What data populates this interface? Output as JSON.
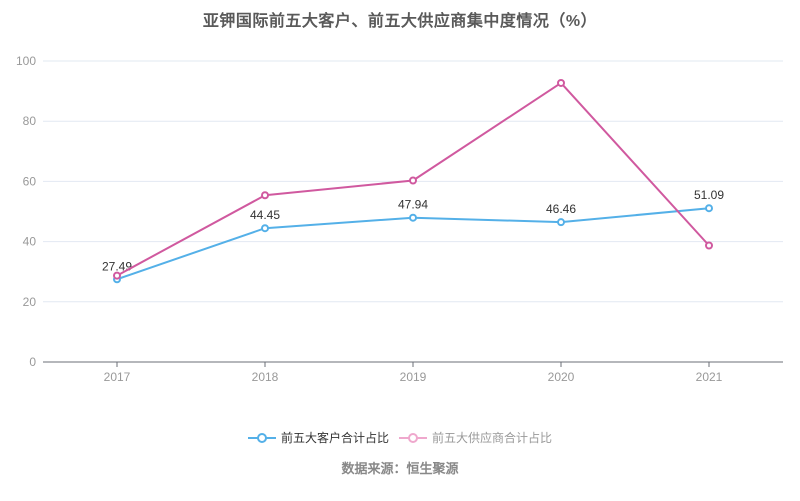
{
  "title": "亚钾国际前五大客户、前五大供应商集中度情况（%）",
  "footer": "数据来源：恒生聚源",
  "chart_data": {
    "type": "line",
    "categories": [
      "2017",
      "2018",
      "2019",
      "2020",
      "2021"
    ],
    "series": [
      {
        "name": "前五大客户合计占比",
        "values": [
          27.49,
          44.45,
          47.94,
          46.46,
          51.09
        ],
        "labels": [
          "27.49",
          "44.45",
          "47.94",
          "46.46",
          "51.09"
        ],
        "show_labels": true,
        "color": "#54b0e8",
        "legend_marker_color": "#54b0e8",
        "legend_text_color": "#333333"
      },
      {
        "name": "前五大供应商合计占比",
        "values": [
          28.7,
          55.4,
          60.3,
          92.7,
          38.7
        ],
        "labels": [],
        "show_labels": false,
        "color": "#d0599f",
        "legend_marker_color": "#efa8cd",
        "legend_text_color": "#999999"
      }
    ],
    "title": "亚钾国际前五大客户、前五大供应商集中度情况（%）",
    "xlabel": "",
    "ylabel": "",
    "ylim": [
      0,
      100
    ],
    "y_ticks": [
      0,
      20,
      40,
      60,
      80,
      100
    ],
    "grid": true,
    "legend_position": "bottom",
    "label_color": "#333333",
    "axis_text_color": "#999999"
  }
}
